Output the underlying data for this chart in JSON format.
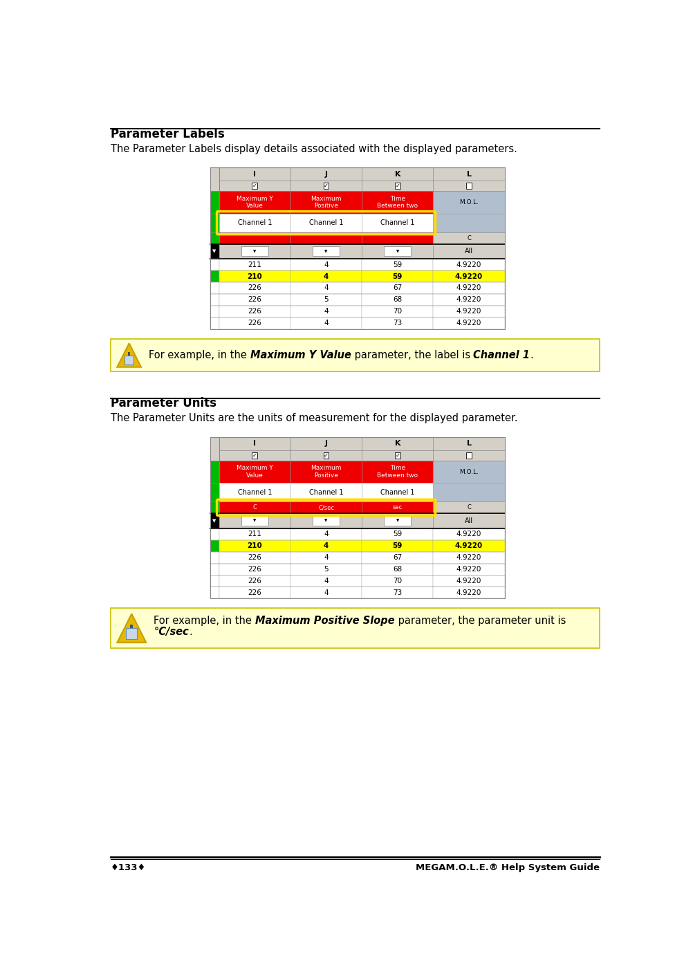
{
  "page_width": 10.02,
  "page_height": 14.11,
  "bg_color": "#ffffff",
  "section1_title": "Parameter Labels",
  "section1_body": "The Parameter Labels display details associated with the displayed parameters.",
  "section2_title": "Parameter Units",
  "section2_body": "The Parameter Units are the units of measurement for the displayed parameter.",
  "note1_line1_plain1": "For example, in the ",
  "note1_line1_bold1": "Maximum Y Value",
  "note1_line1_plain2": " parameter, the label is ",
  "note1_line1_bold2": "Channel 1",
  "note1_line1_plain3": ".",
  "note2_line1_plain1": "For example, in the ",
  "note2_line1_bold1": "Maximum Positive Slope",
  "note2_line1_plain2": " parameter, the parameter unit is",
  "note2_line2_bold1": "°C/sec",
  "note2_line2_plain1": ".",
  "footer_left": "♦133♦",
  "footer_right": "MEGAM.O.L.E.® Help System Guide",
  "table_col_headers": [
    "I",
    "J",
    "K",
    "L"
  ],
  "table_param_names": [
    "Maximum Y\nValue",
    "Maximum\nPositive",
    "Time\nBetween two",
    "M.O.L."
  ],
  "table_label_row": [
    "Channel 1",
    "Channel 1",
    "Channel 1"
  ],
  "table_unit_row_labels": [
    "C",
    "C/sec",
    "sec"
  ],
  "table_unit_row_red": [
    "C",
    "C/sec",
    "sec"
  ],
  "table_data_rows": [
    [
      "211",
      "4",
      "59",
      "4.9220"
    ],
    [
      "210",
      "4",
      "59",
      "4.9220"
    ],
    [
      "226",
      "4",
      "67",
      "4.9220"
    ],
    [
      "226",
      "5",
      "68",
      "4.9220"
    ],
    [
      "226",
      "4",
      "70",
      "4.9220"
    ],
    [
      "226",
      "4",
      "73",
      "4.9220"
    ]
  ],
  "highlight_row_idx": 1,
  "col_header_bg": "#d4d0c8",
  "red_color": "#ee0000",
  "green_color": "#00bb00",
  "yellow_color": "#ffff00",
  "blue_gray_color": "#b0bece",
  "note_bg": "#ffffd0",
  "note_border": "#d0c800",
  "icon_bg": "#c8d8e8",
  "icon_border": "#c8a000",
  "icon_tri": "#e8b800"
}
